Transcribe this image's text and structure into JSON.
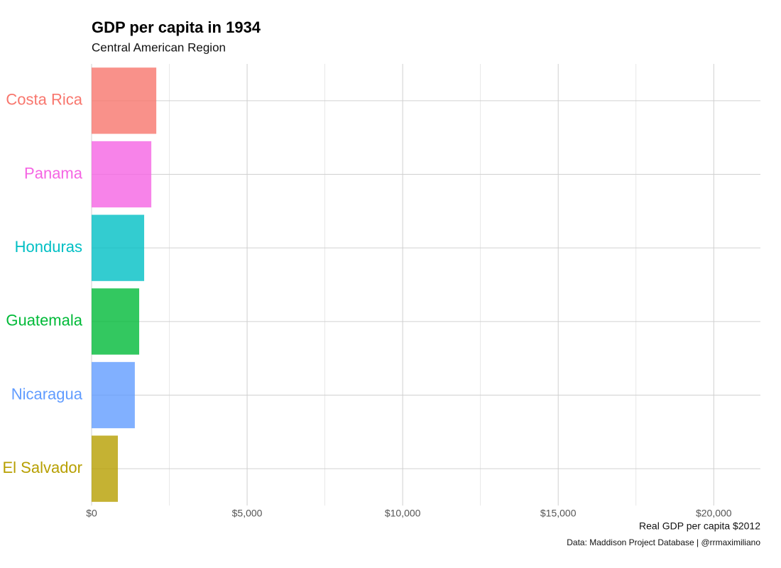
{
  "chart_data": {
    "type": "barh",
    "title": "GDP per capita in 1934",
    "subtitle": "Central American Region",
    "xlabel": "Real GDP per capita $2012",
    "caption": "Data: Maddison Project Database | @rrmaximiliano",
    "categories": [
      "Costa Rica",
      "Panama",
      "Honduras",
      "Guatemala",
      "Nicaragua",
      "El Salvador"
    ],
    "values": [
      2080,
      1920,
      1690,
      1530,
      1390,
      845
    ],
    "colors": [
      "#F8766D",
      "#F564E3",
      "#00BFC4",
      "#00BA38",
      "#619CFF",
      "#B79F00"
    ],
    "bar_opacity": 0.8,
    "xlim": [
      0,
      21500
    ],
    "xticks": [
      {
        "value": 0,
        "label": "$0"
      },
      {
        "value": 5000,
        "label": "$5,000"
      },
      {
        "value": 10000,
        "label": "$10,000"
      },
      {
        "value": 15000,
        "label": "$15,000"
      },
      {
        "value": 20000,
        "label": "$20,000"
      }
    ],
    "xminorticks": [
      2500,
      7500,
      12500,
      17500
    ],
    "grid": true
  }
}
